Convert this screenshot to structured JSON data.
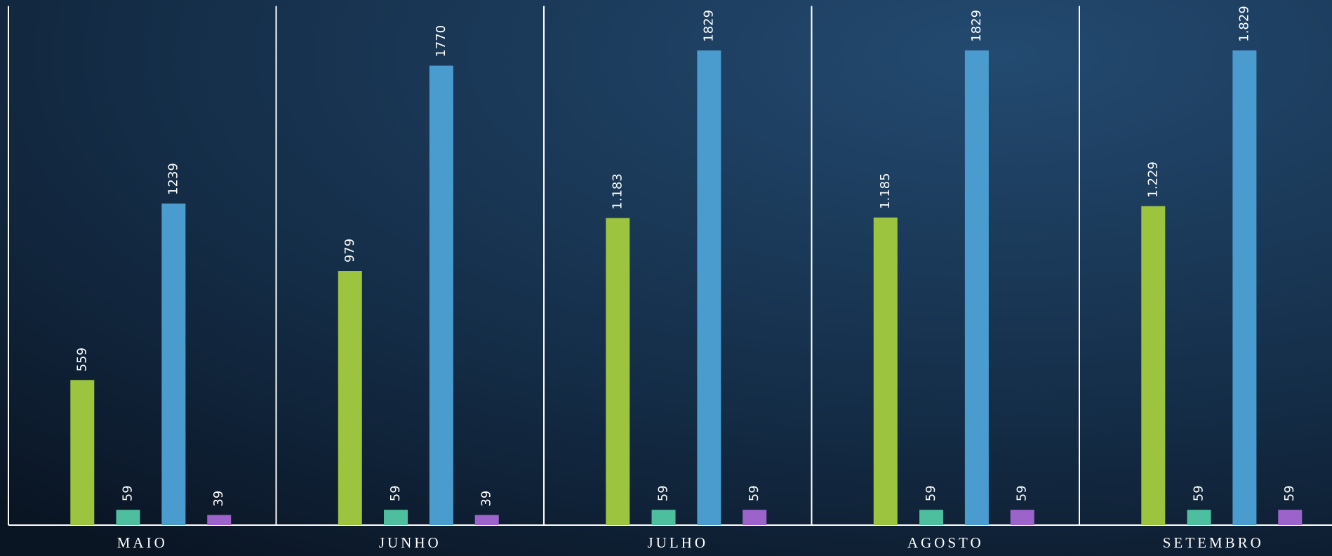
{
  "chart_data": {
    "type": "bar",
    "categories": [
      "MAIO",
      "JUNHO",
      "JULHO",
      "AGOSTO",
      "SETEMBRO"
    ],
    "series": [
      {
        "color": "#9dc43e",
        "values": [
          559,
          979,
          1183,
          1185,
          1229
        ],
        "value_labels": [
          "559",
          "979",
          "1.183",
          "1.185",
          "1.229"
        ]
      },
      {
        "color": "#4dbf9f",
        "values": [
          59,
          59,
          59,
          59,
          59
        ],
        "value_labels": [
          "59",
          "59",
          "59",
          "59",
          "59"
        ]
      },
      {
        "color": "#4a9ccf",
        "values": [
          1239,
          1770,
          1829,
          1829,
          1829
        ],
        "value_labels": [
          "1239",
          "1770",
          "1829",
          "1829",
          "1.829"
        ]
      },
      {
        "color": "#9c63cb",
        "values": [
          39,
          39,
          59,
          59,
          59
        ],
        "value_labels": [
          "39",
          "39",
          "59",
          "59",
          "59"
        ]
      }
    ],
    "ylim": [
      0,
      2000
    ]
  }
}
